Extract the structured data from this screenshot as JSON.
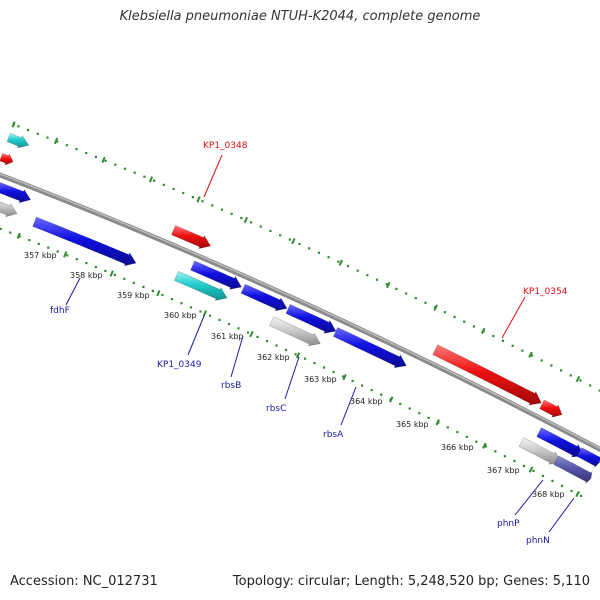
{
  "title": "Klebsiella pneumoniae NTUH-K2044, complete genome",
  "footer": {
    "accession": "Accession: NC_012731",
    "summary": "Topology: circular; Length: 5,248,520 bp; Genes: 5,110"
  },
  "colors": {
    "backbone": "#8a8a8a",
    "tick": "#2e8b2e",
    "gene_blue": "#1010e0",
    "gene_red": "#ee1111",
    "gene_cyan": "#22cccc",
    "gene_gray": "#cccccc",
    "gene_slate": "#5555aa",
    "label_blue": "#1a1aa6",
    "label_red": "#dd1111"
  },
  "kbp_ticks": [
    "357 kbp",
    "358 kbp",
    "359 kbp",
    "360 kbp",
    "361 kbp",
    "362 kbp",
    "363 kbp",
    "364 kbp",
    "365 kbp",
    "366 kbp",
    "367 kbp",
    "368 kbp"
  ],
  "gene_labels": [
    {
      "name": "fdhF",
      "color": "blue"
    },
    {
      "name": "KP1_0348",
      "color": "red"
    },
    {
      "name": "KP1_0349",
      "color": "blue"
    },
    {
      "name": "rbsB",
      "color": "blue"
    },
    {
      "name": "rbsC",
      "color": "blue"
    },
    {
      "name": "rbsA",
      "color": "blue"
    },
    {
      "name": "KP1_0354",
      "color": "red"
    },
    {
      "name": "phnP",
      "color": "blue"
    },
    {
      "name": "phnN",
      "color": "blue"
    }
  ]
}
